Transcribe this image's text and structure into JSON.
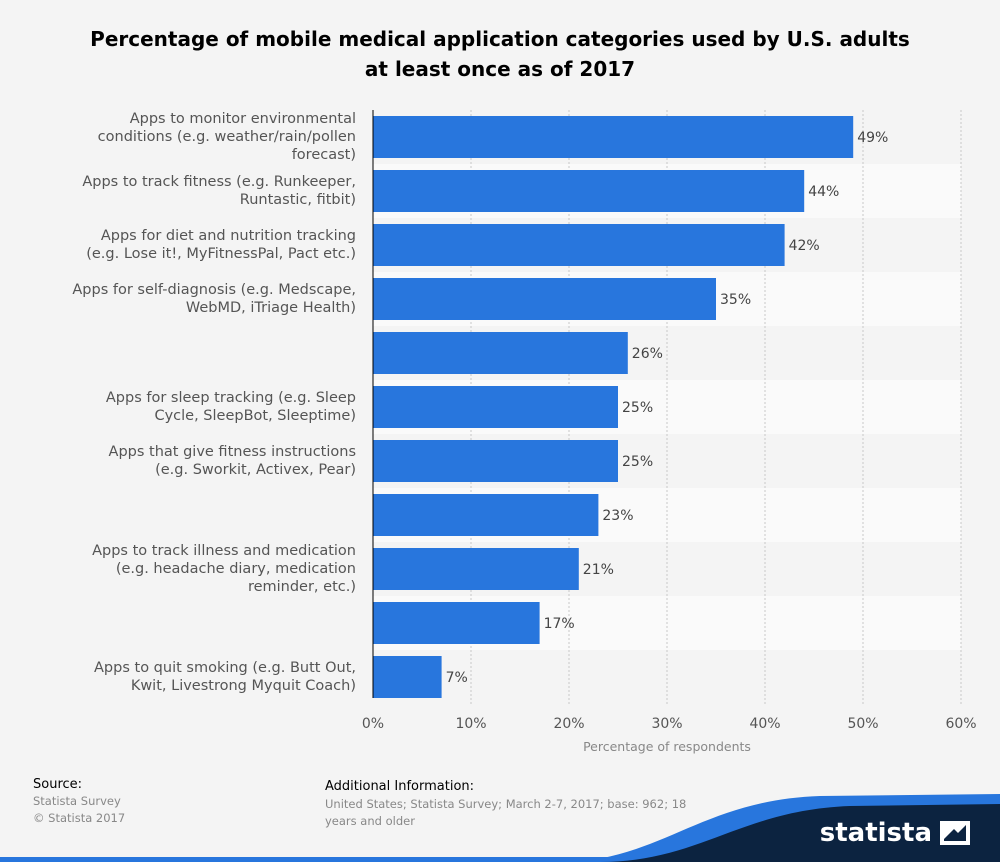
{
  "chart_data": {
    "type": "bar",
    "orientation": "horizontal",
    "title": "Percentage of mobile medical application categories used by U.S. adults at least once as of 2017",
    "xlabel": "Percentage of respondents",
    "xlim": [
      0,
      60
    ],
    "x_ticks": [
      "0%",
      "10%",
      "20%",
      "30%",
      "40%",
      "50%",
      "60%"
    ],
    "categories": [
      "Apps to monitor environmental conditions (e.g. weather/rain/pollen forecast)",
      "Apps to track fitness (e.g. Runkeeper, Runtastic, fitbit)",
      "Apps for diet and nutrition tracking (e.g. Lose it!, MyFitnessPal, Pact etc.)",
      "Apps for self-diagnosis (e.g. Medscape, WebMD, iTriage Health)",
      "",
      "Apps for sleep tracking (e.g. Sleep Cycle, SleepBot, Sleeptime)",
      "Apps that give fitness instructions (e.g. Sworkit, Activex, Pear)",
      "",
      "Apps to track illness and medication (e.g. headache diary, medication reminder, etc.)",
      "",
      "Apps to quit smoking (e.g. Butt Out, Kwit, Livestrong Myquit Coach)"
    ],
    "category_lines": [
      [
        "Apps to monitor environmental",
        "conditions (e.g. weather/rain/pollen",
        "forecast)"
      ],
      [
        "Apps to track fitness (e.g. Runkeeper,",
        "Runtastic, fitbit)"
      ],
      [
        "Apps for diet and nutrition tracking",
        "(e.g. Lose it!, MyFitnessPal, Pact etc.)"
      ],
      [
        "Apps for self-diagnosis (e.g. Medscape,",
        "WebMD, iTriage Health)"
      ],
      [],
      [
        "Apps for sleep tracking (e.g. Sleep",
        "Cycle, SleepBot, Sleeptime)"
      ],
      [
        "Apps that give fitness instructions",
        "(e.g. Sworkit, Activex, Pear)"
      ],
      [],
      [
        "Apps to track illness and medication",
        "(e.g. headache diary, medication",
        "reminder, etc.)"
      ],
      [],
      [
        "Apps to quit smoking (e.g. Butt Out,",
        "Kwit, Livestrong Myquit Coach)"
      ]
    ],
    "values": [
      49,
      44,
      42,
      35,
      26,
      25,
      25,
      23,
      21,
      17,
      7
    ],
    "value_labels": [
      "49%",
      "44%",
      "42%",
      "35%",
      "26%",
      "25%",
      "25%",
      "23%",
      "21%",
      "17%",
      "7%"
    ],
    "grid": true,
    "colors": {
      "bar": "#2876dd",
      "band": "#f4f4f4",
      "band_alt": "#fafafa"
    }
  },
  "footer": {
    "source_heading": "Source:",
    "source_lines": [
      "Statista Survey",
      "© Statista 2017"
    ],
    "additional_heading": "Additional Information:",
    "additional_lines": [
      "United States; Statista Survey; March 2-7, 2017; base: 962; 18",
      "years and older"
    ],
    "brand": "statista",
    "brand_icon": "statista-logo-icon",
    "brand_colors": {
      "dark": "#0c2340",
      "accent": "#2876dd"
    }
  }
}
